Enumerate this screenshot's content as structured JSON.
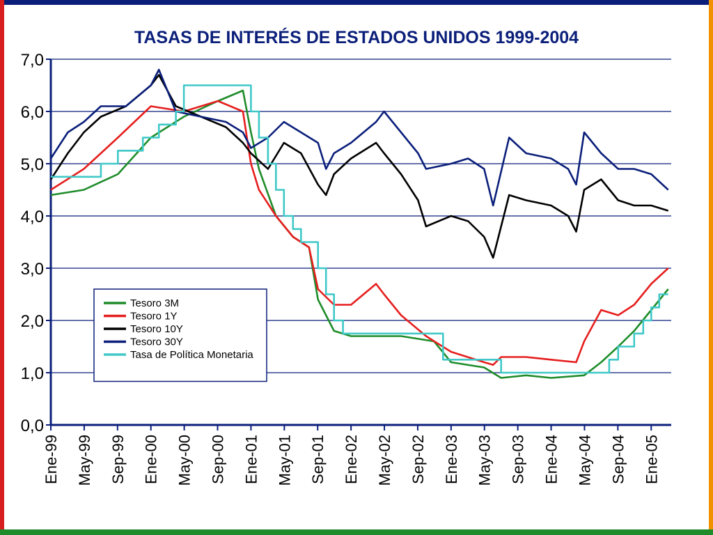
{
  "chart_data": {
    "type": "line",
    "title": "TASAS DE INTERÉS DE ESTADOS UNIDOS 1999-2004",
    "ylim": [
      0,
      7
    ],
    "yticks": [
      "0,0",
      "1,0",
      "2,0",
      "3,0",
      "4,0",
      "5,0",
      "6,0",
      "7,0"
    ],
    "xticks": [
      "Ene-99",
      "May-99",
      "Sep-99",
      "Ene-00",
      "May-00",
      "Sep-00",
      "Ene-01",
      "May-01",
      "Sep-01",
      "Ene-02",
      "May-02",
      "Sep-02",
      "Ene-03",
      "May-03",
      "Sep-03",
      "Ene-04",
      "May-04",
      "Sep-04",
      "Ene-05"
    ],
    "grid": true,
    "legend_position": "lower-left",
    "series": [
      {
        "name": "Tesoro 3M",
        "color": "#1e8c2a",
        "type": "line",
        "x": [
          1999.0,
          1999.33,
          1999.67,
          2000.0,
          2000.33,
          2000.67,
          2000.92,
          2001.0,
          2001.08,
          2001.25,
          2001.42,
          2001.58,
          2001.67,
          2001.83,
          2002.0,
          2002.5,
          2002.83,
          2003.0,
          2003.33,
          2003.5,
          2003.75,
          2004.0,
          2004.33,
          2004.5,
          2004.67,
          2004.83,
          2005.0,
          2005.17
        ],
        "y": [
          4.4,
          4.5,
          4.8,
          5.5,
          5.9,
          6.2,
          6.4,
          5.6,
          4.9,
          4.0,
          3.6,
          3.4,
          2.4,
          1.8,
          1.7,
          1.7,
          1.6,
          1.2,
          1.1,
          0.9,
          0.95,
          0.9,
          0.95,
          1.2,
          1.5,
          1.8,
          2.2,
          2.6
        ]
      },
      {
        "name": "Tesoro 1Y",
        "color": "#e61e1e",
        "type": "line",
        "x": [
          1999.0,
          1999.33,
          1999.67,
          2000.0,
          2000.33,
          2000.67,
          2000.92,
          2001.0,
          2001.08,
          2001.25,
          2001.42,
          2001.58,
          2001.67,
          2001.83,
          2002.0,
          2002.25,
          2002.33,
          2002.5,
          2002.75,
          2003.0,
          2003.33,
          2003.42,
          2003.5,
          2003.75,
          2004.0,
          2004.25,
          2004.33,
          2004.5,
          2004.67,
          2004.83,
          2005.0,
          2005.17
        ],
        "y": [
          4.5,
          4.9,
          5.5,
          6.1,
          6.0,
          6.2,
          6.0,
          5.0,
          4.5,
          4.0,
          3.6,
          3.4,
          2.6,
          2.3,
          2.3,
          2.7,
          2.5,
          2.1,
          1.7,
          1.4,
          1.2,
          1.15,
          1.3,
          1.3,
          1.25,
          1.2,
          1.6,
          2.2,
          2.1,
          2.3,
          2.7,
          3.0
        ]
      },
      {
        "name": "Tesoro 10Y",
        "color": "#000000",
        "type": "line",
        "x": [
          1999.0,
          1999.17,
          1999.33,
          1999.5,
          1999.75,
          2000.0,
          2000.08,
          2000.25,
          2000.5,
          2000.75,
          2000.92,
          2001.0,
          2001.17,
          2001.33,
          2001.5,
          2001.67,
          2001.75,
          2001.83,
          2002.0,
          2002.25,
          2002.33,
          2002.5,
          2002.67,
          2002.75,
          2003.0,
          2003.17,
          2003.33,
          2003.42,
          2003.58,
          2003.75,
          2004.0,
          2004.17,
          2004.25,
          2004.33,
          2004.5,
          2004.67,
          2004.83,
          2005.0,
          2005.17
        ],
        "y": [
          4.7,
          5.2,
          5.6,
          5.9,
          6.1,
          6.5,
          6.7,
          6.1,
          5.9,
          5.7,
          5.4,
          5.2,
          4.9,
          5.4,
          5.2,
          4.6,
          4.4,
          4.8,
          5.1,
          5.4,
          5.2,
          4.8,
          4.3,
          3.8,
          4.0,
          3.9,
          3.6,
          3.2,
          4.4,
          4.3,
          4.2,
          4.0,
          3.7,
          4.5,
          4.7,
          4.3,
          4.2,
          4.2,
          4.1
        ]
      },
      {
        "name": "Tesoro 30Y",
        "color": "#0b1f7a",
        "type": "line",
        "x": [
          1999.0,
          1999.17,
          1999.33,
          1999.5,
          1999.75,
          2000.0,
          2000.08,
          2000.25,
          2000.5,
          2000.75,
          2000.92,
          2001.0,
          2001.17,
          2001.33,
          2001.5,
          2001.67,
          2001.75,
          2001.83,
          2002.0,
          2002.25,
          2002.33,
          2002.5,
          2002.67,
          2002.75,
          2003.0,
          2003.17,
          2003.33,
          2003.42,
          2003.58,
          2003.75,
          2004.0,
          2004.17,
          2004.25,
          2004.33,
          2004.5,
          2004.67,
          2004.83,
          2005.0,
          2005.17
        ],
        "y": [
          5.1,
          5.6,
          5.8,
          6.1,
          6.1,
          6.5,
          6.8,
          6.0,
          5.9,
          5.8,
          5.6,
          5.3,
          5.5,
          5.8,
          5.6,
          5.4,
          4.9,
          5.2,
          5.4,
          5.8,
          6.0,
          5.6,
          5.2,
          4.9,
          5.0,
          5.1,
          4.9,
          4.2,
          5.5,
          5.2,
          5.1,
          4.9,
          4.6,
          5.6,
          5.2,
          4.9,
          4.9,
          4.8,
          4.5
        ]
      },
      {
        "name": "Tasa de Política Monetaria",
        "color": "#40c8c8",
        "type": "step",
        "x": [
          1999.0,
          1999.5,
          1999.67,
          1999.92,
          2000.08,
          2000.25,
          2000.33,
          2000.92,
          2001.0,
          2001.08,
          2001.17,
          2001.25,
          2001.33,
          2001.42,
          2001.5,
          2001.67,
          2001.75,
          2001.83,
          2001.92,
          2002.83,
          2002.92,
          2003.42,
          2003.5,
          2004.42,
          2004.58,
          2004.67,
          2004.83,
          2004.92,
          2005.0,
          2005.08,
          2005.17
        ],
        "y": [
          4.75,
          5.0,
          5.25,
          5.5,
          5.75,
          6.0,
          6.5,
          6.5,
          6.0,
          5.5,
          5.0,
          4.5,
          4.0,
          3.75,
          3.5,
          3.0,
          2.5,
          2.0,
          1.75,
          1.75,
          1.25,
          1.25,
          1.0,
          1.0,
          1.25,
          1.5,
          1.75,
          2.0,
          2.25,
          2.5,
          2.5
        ]
      }
    ]
  }
}
